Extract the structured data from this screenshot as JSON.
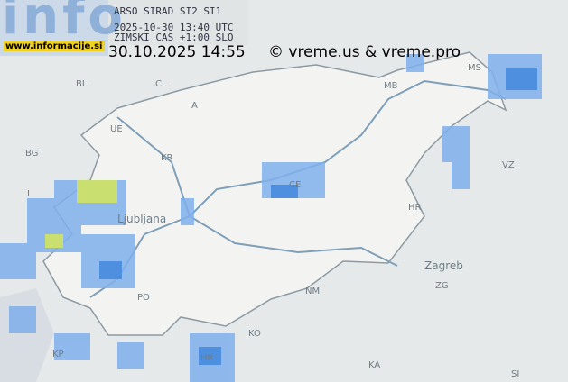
{
  "logo": {
    "text": "info",
    "url": "www.informacije.si"
  },
  "radar": {
    "source": "ARSO SIRAD SI2 SI1",
    "time_utc": "2025-10-30 13:40 UTC",
    "time_zone": "ZIMSKI CAS +1:00 SLO"
  },
  "timestamp": "30.10.2025 14:55",
  "copyright": "© vreme.us & vreme.pro",
  "map_labels": [
    "BL",
    "CL",
    "A",
    "UE",
    "BG",
    "KR",
    "I",
    "Ljubljana",
    "HR",
    "MB",
    "MS",
    "CE",
    "NM",
    "Zagreb",
    "ZG",
    "KO",
    "KP",
    "PO",
    "KA",
    "SI",
    "HR",
    "VZ"
  ]
}
